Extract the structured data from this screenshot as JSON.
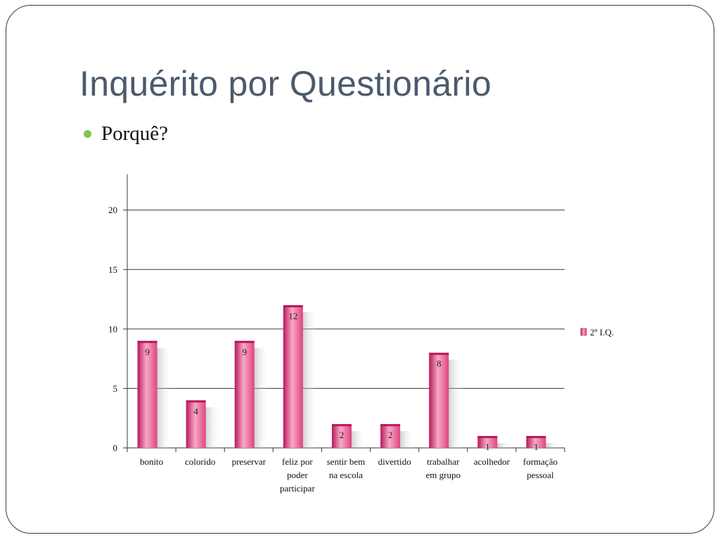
{
  "slide": {
    "title": "Inquérito por Questionário",
    "bullet": "Porquê?"
  },
  "chart_data": {
    "type": "bar",
    "categories": [
      [
        "bonito"
      ],
      [
        "colorido"
      ],
      [
        "preservar"
      ],
      [
        "feliz por",
        "poder",
        "participar"
      ],
      [
        "sentir bem",
        "na escola"
      ],
      [
        "divertido"
      ],
      [
        "trabalhar",
        "em grupo"
      ],
      [
        "acolhedor"
      ],
      [
        "formação",
        "pessoal"
      ]
    ],
    "series": [
      {
        "name": "2º I.Q.",
        "values": [
          9,
          4,
          9,
          12,
          2,
          2,
          8,
          1,
          1
        ]
      }
    ],
    "yticks": [
      0,
      5,
      10,
      15,
      20
    ],
    "ylim": [
      0,
      23
    ],
    "grid": true,
    "legend": "right",
    "colors": {
      "bar": "#e0437f",
      "bar_light": "#f7a9c6",
      "bar_dark": "#b8185a",
      "grid": "#3a3a3a"
    }
  }
}
